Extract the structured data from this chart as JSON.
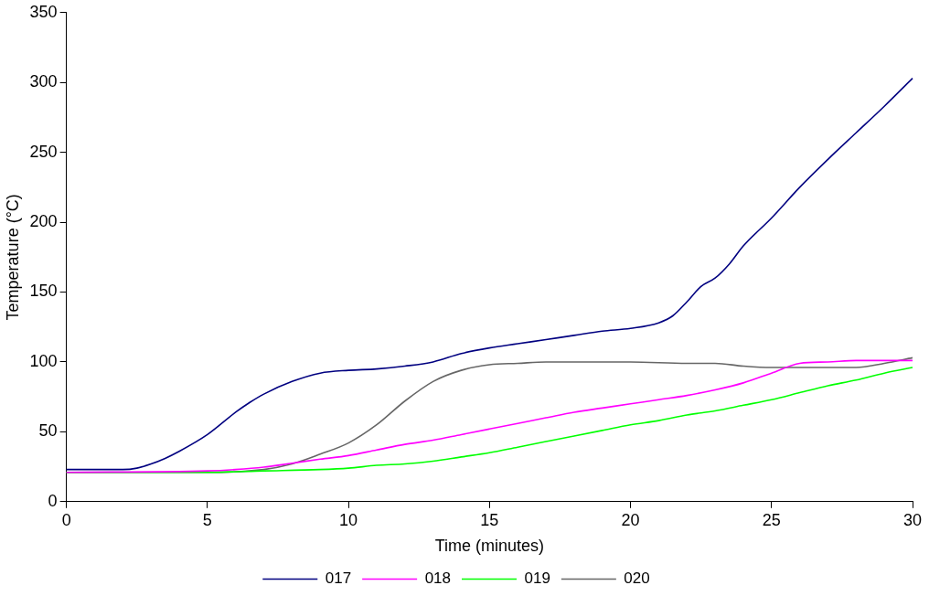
{
  "chart_data": {
    "type": "line",
    "xlabel": "Time (minutes)",
    "ylabel": "Temperature (°C)",
    "xlim": [
      0,
      30
    ],
    "xticks": [
      0,
      5,
      10,
      15,
      20,
      25,
      30
    ],
    "ylim": [
      0,
      350
    ],
    "yticks": [
      0,
      50,
      100,
      150,
      200,
      250,
      300,
      350
    ],
    "grid": false,
    "legend": "bottom",
    "marker": "none",
    "line_style": "solid",
    "series": [
      {
        "name": "017",
        "color": "#000080",
        "x": [
          0,
          2,
          2.5,
          3,
          3.5,
          4,
          5,
          6,
          6.5,
          7,
          8,
          9,
          10,
          11,
          12,
          13,
          14,
          15,
          16,
          17,
          18,
          19,
          20,
          21,
          21.5,
          22,
          22.5,
          23,
          23.5,
          24,
          25,
          26,
          27,
          28,
          29,
          30
        ],
        "values": [
          23,
          23,
          24,
          27,
          31,
          36,
          48,
          64,
          71,
          77,
          86,
          92,
          94,
          95,
          97,
          100,
          106,
          110,
          113,
          116,
          119,
          122,
          124,
          128,
          133,
          143,
          154,
          160,
          170,
          183,
          203,
          225,
          245,
          264,
          283,
          303
        ]
      },
      {
        "name": "018",
        "color": "#ff00ff",
        "x": [
          0,
          5,
          6,
          7,
          8,
          9,
          10,
          11,
          12,
          13,
          14,
          15,
          16,
          17,
          18,
          19,
          20,
          21,
          22,
          23,
          24,
          25,
          26,
          27,
          28,
          29,
          30
        ],
        "values": [
          21,
          22,
          23,
          24.7,
          27.5,
          30.4,
          33,
          37,
          41,
          44,
          48,
          52,
          56,
          60,
          64,
          67,
          70,
          73,
          76,
          80,
          85,
          92,
          99,
          100,
          101,
          101,
          101
        ]
      },
      {
        "name": "019",
        "color": "#00ff00",
        "x": [
          0,
          5,
          7,
          9,
          10,
          11,
          12,
          13,
          14,
          15,
          16,
          17,
          18,
          19,
          20,
          21,
          22,
          23,
          24,
          25,
          26,
          27,
          28,
          29,
          30
        ],
        "values": [
          21,
          21,
          22,
          23,
          24,
          26,
          27,
          29,
          32,
          35,
          39,
          43,
          47,
          51,
          55,
          58,
          62,
          65,
          69,
          73,
          78,
          83,
          87,
          92,
          96
        ]
      },
      {
        "name": "020",
        "color": "#666666",
        "x": [
          0,
          5,
          7,
          8,
          9,
          10,
          11,
          12,
          13,
          14,
          15,
          16,
          17,
          18,
          20,
          22,
          23,
          24,
          25,
          26,
          27,
          28,
          29,
          30
        ],
        "values": [
          21,
          21,
          23,
          27,
          34,
          42,
          55,
          72,
          86,
          94,
          98,
          99,
          100,
          100,
          100,
          99,
          99,
          97,
          96,
          96,
          96,
          96,
          99,
          103
        ]
      }
    ]
  }
}
